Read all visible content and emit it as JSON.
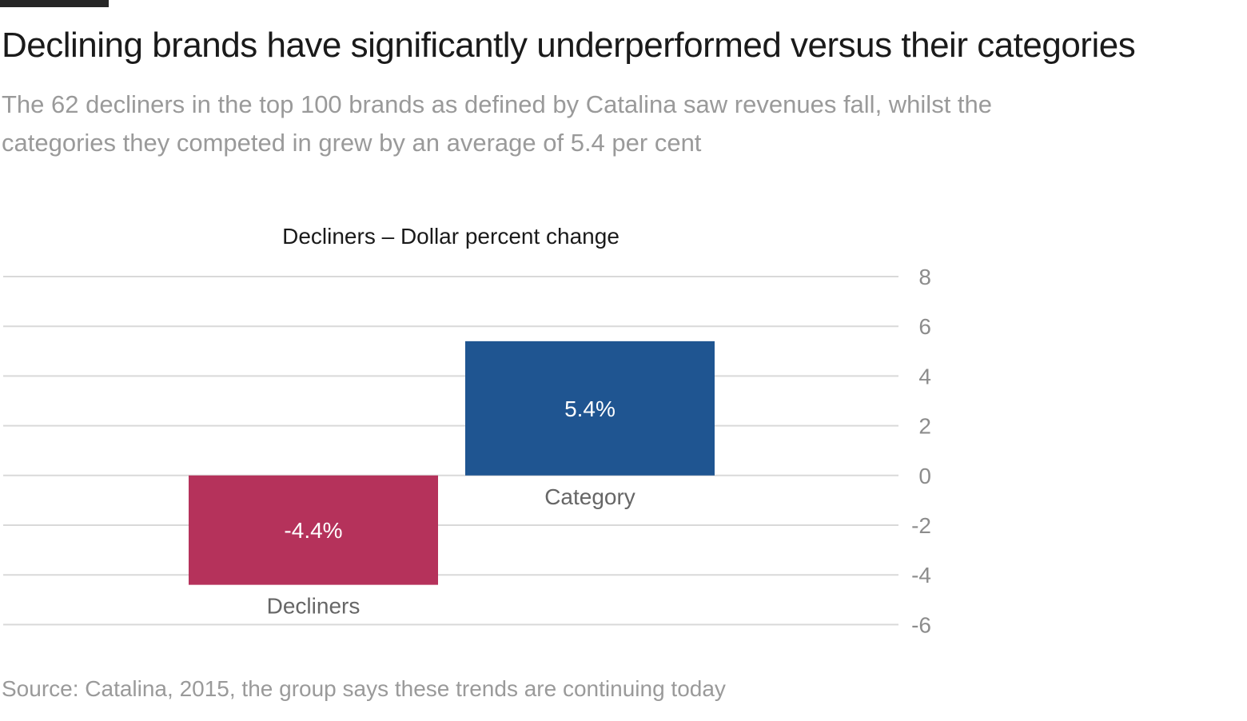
{
  "headline": "Declining brands have significantly underperformed versus their categories",
  "subtitle": "The 62 decliners in the top 100 brands as defined by Catalina saw revenues fall, whilst the categories they competed in grew by an average of 5.4 per cent",
  "source": "Source: Catalina, 2015, the group says these trends are continuing today",
  "chart_data": {
    "type": "bar",
    "title": "Decliners – Dollar percent change",
    "xlabel": "",
    "ylabel": "",
    "categories": [
      "Decliners",
      "Category"
    ],
    "values": [
      -4.4,
      5.4
    ],
    "data_labels": [
      "-4.4%",
      "5.4%"
    ],
    "colors": [
      "#b5325b",
      "#1f5591"
    ],
    "ylim": [
      -6,
      8
    ],
    "yticks": [
      8,
      6,
      4,
      2,
      0,
      -2,
      -4,
      -6
    ],
    "ytick_labels": [
      "8",
      "6",
      "4",
      "2",
      "0",
      "-2",
      "-4",
      "-6"
    ],
    "y_axis_side": "right",
    "grid": true,
    "legend": "none"
  }
}
